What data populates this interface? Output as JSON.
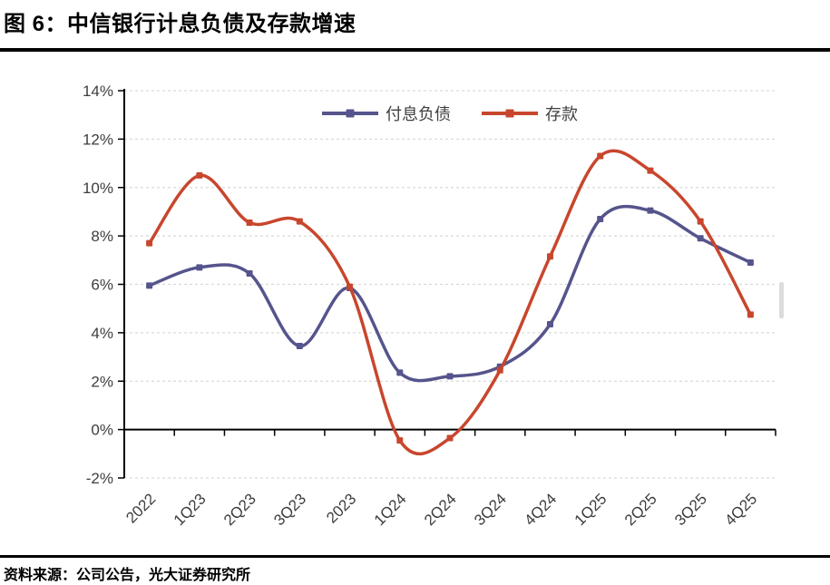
{
  "header": {
    "figure_title": "图 6：中信银行计息负债及存款增速"
  },
  "footer": {
    "source": "资料来源：公司公告，光大证券研究所"
  },
  "colors": {
    "liabilities_series": "#55548C",
    "deposits_series": "#C8462D",
    "gridline": "#d9d9d9",
    "axis": "#000000",
    "axis_label": "#3d3d3d"
  },
  "chart_data": {
    "type": "line",
    "title": "中信银行计息负债及存款增速",
    "categories": [
      "2022",
      "1Q23",
      "2Q23",
      "3Q23",
      "2023",
      "1Q24",
      "2Q24",
      "3Q24",
      "4Q24",
      "1Q25",
      "2Q25",
      "3Q25",
      "4Q25"
    ],
    "series": [
      {
        "name": "付息负债",
        "color": "#55548C",
        "values": [
          5.95,
          6.7,
          6.45,
          3.45,
          5.85,
          2.35,
          2.2,
          2.6,
          4.35,
          8.7,
          9.05,
          7.9,
          6.9
        ]
      },
      {
        "name": "存款",
        "color": "#C8462D",
        "values": [
          7.7,
          10.5,
          8.55,
          8.6,
          5.9,
          -0.45,
          -0.35,
          2.45,
          7.15,
          11.3,
          10.7,
          8.6,
          4.75
        ]
      }
    ],
    "ylabel": "",
    "xlabel": "",
    "ylim": [
      -2,
      14
    ],
    "ytick_step": 2,
    "ytick_suffix": "%",
    "grid": "horizontal-dashed",
    "legend_position": "top-center",
    "smooth": true,
    "x_label_rotation_deg": 45
  }
}
